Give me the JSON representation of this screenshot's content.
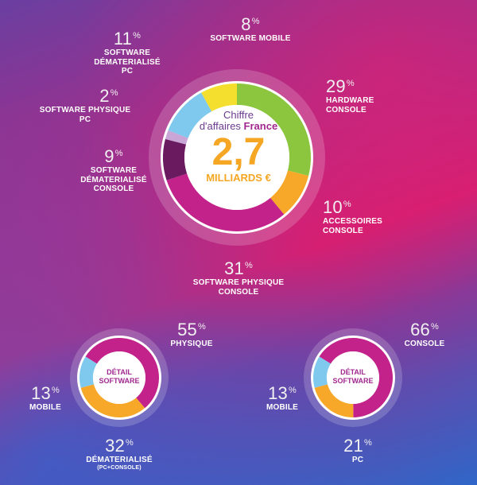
{
  "center": {
    "line1": "Chiffre",
    "line2_prefix": "d'affaires ",
    "line2_bold": "France",
    "value": "2,7",
    "unit": "MILLIARDS €"
  },
  "small_charts": [
    {
      "center_line1": "DÉTAIL",
      "center_line2": "SOFTWARE"
    },
    {
      "center_line1": "DÉTAIL",
      "center_line2": "SOFTWARE"
    }
  ],
  "colors": {
    "magenta": "#c2228a",
    "green": "#8cc63f",
    "orange": "#f7a829",
    "yellow": "#f5df2e",
    "lightblue": "#7fc8ee",
    "purple": "#6a1b5f",
    "lavender": "#c9a6d6"
  },
  "chart_data": [
    {
      "type": "pie",
      "donut": true,
      "unit": "%",
      "categories": [
        "HARDWARE CONSOLE",
        "ACCESSOIRES CONSOLE",
        "SOFTWARE PHYSIQUE CONSOLE",
        "SOFTWARE DÉMATERIALISÉ CONSOLE",
        "SOFTWARE PHYSIQUE PC",
        "SOFTWARE DÉMATERIALISÉ PC",
        "SOFTWARE MOBILE"
      ],
      "values": [
        29,
        10,
        31,
        9,
        2,
        11,
        8
      ],
      "labels": [
        {
          "pct": "29",
          "lines": [
            "HARDWARE",
            "CONSOLE"
          ]
        },
        {
          "pct": "10",
          "lines": [
            "ACCESSOIRES",
            "CONSOLE"
          ]
        },
        {
          "pct": "31",
          "lines": [
            "SOFTWARE PHYSIQUE",
            "CONSOLE"
          ]
        },
        {
          "pct": "9",
          "lines": [
            "SOFTWARE",
            "DÉMATERIALISÉ",
            "CONSOLE"
          ]
        },
        {
          "pct": "2",
          "lines": [
            "SOFTWARE PHYSIQUE",
            "PC"
          ]
        },
        {
          "pct": "11",
          "lines": [
            "SOFTWARE",
            "DÉMATERIALISÉ",
            "PC"
          ]
        },
        {
          "pct": "8",
          "lines": [
            "SOFTWARE MOBILE"
          ]
        }
      ],
      "colors": [
        "#8cc63f",
        "#f7a829",
        "#c2228a",
        "#6a1b5f",
        "#c9a6d6",
        "#7fc8ee",
        "#f5df2e"
      ]
    },
    {
      "type": "pie",
      "donut": true,
      "unit": "%",
      "categories": [
        "PHYSIQUE",
        "DÉMATERIALISÉ",
        "MOBILE"
      ],
      "values": [
        55,
        32,
        13
      ],
      "labels": [
        {
          "pct": "55",
          "lines": [
            "PHYSIQUE"
          ]
        },
        {
          "pct": "32",
          "lines": [
            "DÉMATERIALISÉ"
          ],
          "sub": "(PC+CONSOLE)"
        },
        {
          "pct": "13",
          "lines": [
            "MOBILE"
          ]
        }
      ],
      "colors": [
        "#c2228a",
        "#f7a829",
        "#7fc8ee"
      ]
    },
    {
      "type": "pie",
      "donut": true,
      "unit": "%",
      "categories": [
        "CONSOLE",
        "PC",
        "MOBILE"
      ],
      "values": [
        66,
        21,
        13
      ],
      "labels": [
        {
          "pct": "66",
          "lines": [
            "CONSOLE"
          ]
        },
        {
          "pct": "21",
          "lines": [
            "PC"
          ]
        },
        {
          "pct": "13",
          "lines": [
            "MOBILE"
          ]
        }
      ],
      "colors": [
        "#c2228a",
        "#f7a829",
        "#7fc8ee"
      ]
    }
  ]
}
